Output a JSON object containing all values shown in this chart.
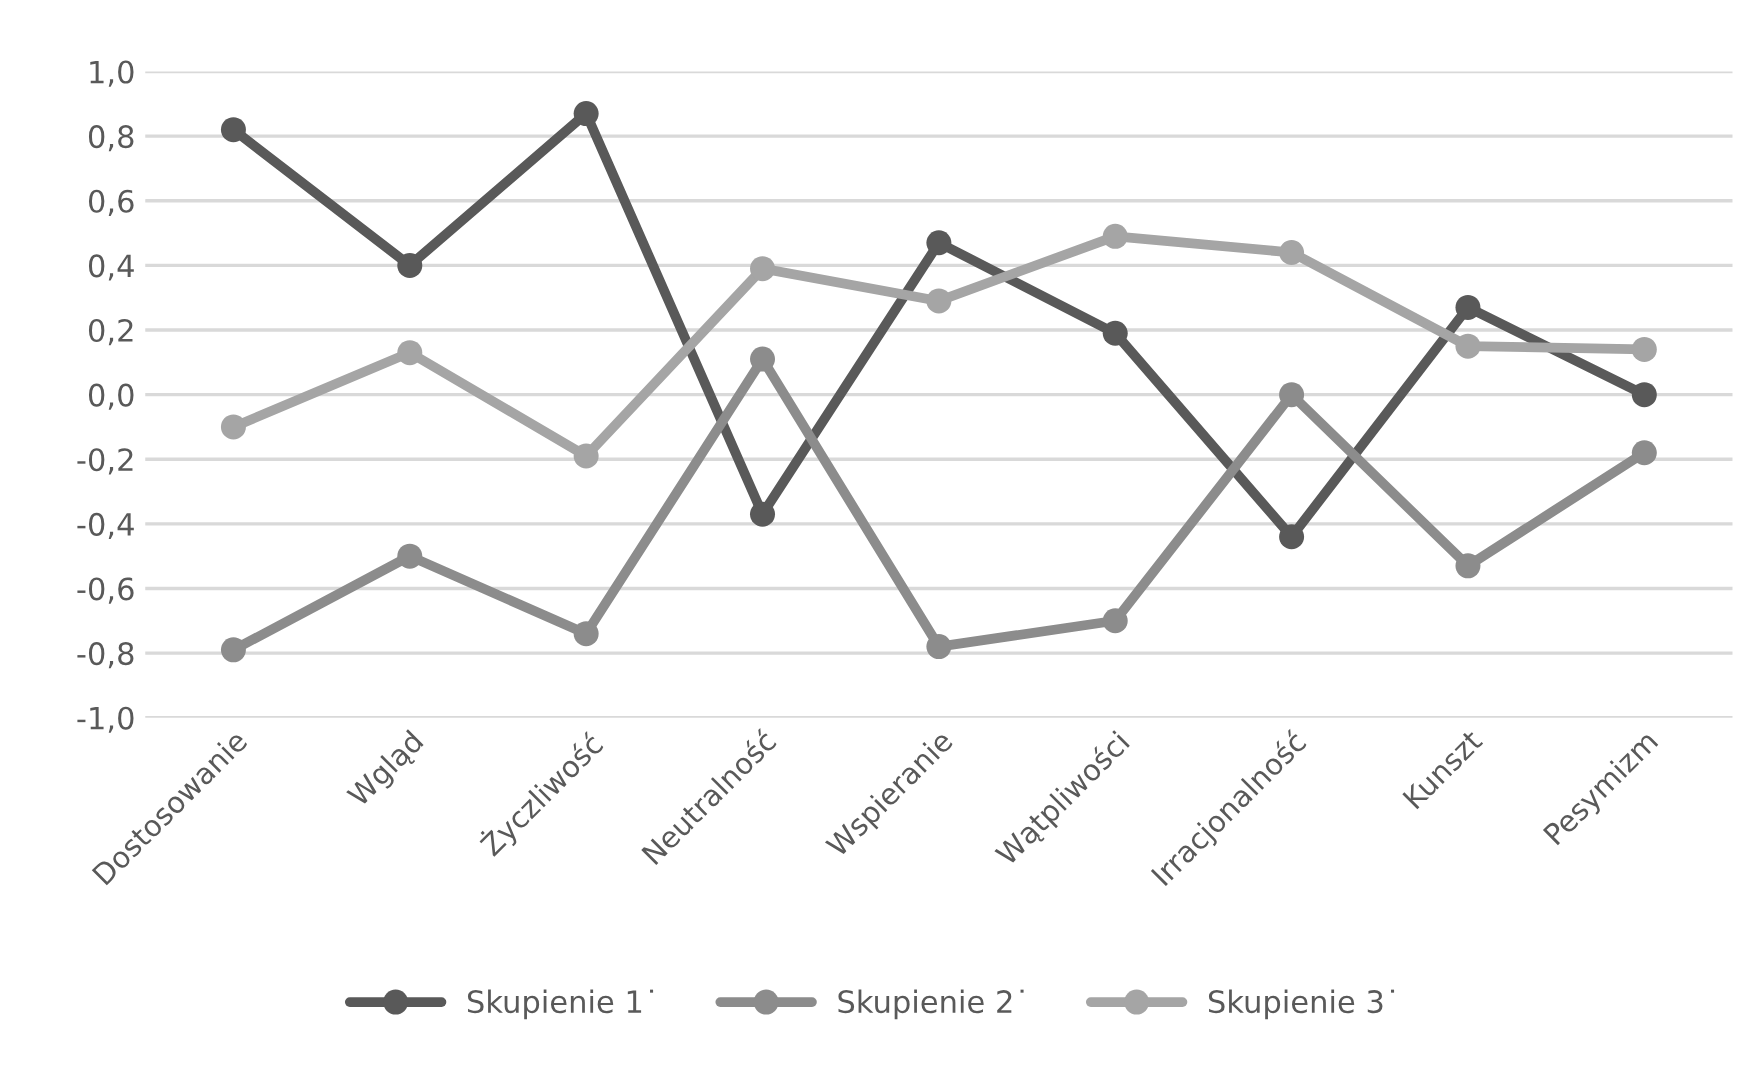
{
  "chart_data": {
    "type": "line",
    "categories": [
      "Dostosowanie",
      "Wgląd",
      "Życzliwość",
      "Neutralność",
      "Wspieranie",
      "Wątpliwości",
      "Irracjonalność",
      "Kunszt",
      "Pesymizm"
    ],
    "series": [
      {
        "name": "Skupienie 1˙",
        "color": "#595959",
        "values": [
          0.82,
          0.4,
          0.87,
          -0.37,
          0.47,
          0.19,
          -0.44,
          0.27,
          0.0
        ]
      },
      {
        "name": "Skupienie 2˙",
        "color": "#8c8c8c",
        "values": [
          -0.79,
          -0.5,
          -0.74,
          0.11,
          -0.78,
          -0.7,
          0.0,
          -0.53,
          -0.18
        ]
      },
      {
        "name": "Skupienie 3˙",
        "color": "#a5a5a5",
        "values": [
          -0.1,
          0.13,
          -0.19,
          0.39,
          0.29,
          0.49,
          0.44,
          0.15,
          0.14
        ]
      }
    ],
    "ylim": [
      -1.0,
      1.0
    ],
    "yticks": [
      {
        "value": -1.0,
        "label": "-1,0"
      },
      {
        "value": -0.8,
        "label": "-0,8"
      },
      {
        "value": -0.6,
        "label": "-0,6"
      },
      {
        "value": -0.4,
        "label": "-0,4"
      },
      {
        "value": -0.2,
        "label": "-0,2"
      },
      {
        "value": 0.0,
        "label": "0,0"
      },
      {
        "value": 0.2,
        "label": "0,2"
      },
      {
        "value": 0.4,
        "label": "0,4"
      },
      {
        "value": 0.6,
        "label": "0,6"
      },
      {
        "value": 0.8,
        "label": "0,8"
      },
      {
        "value": 1.0,
        "label": "1,0"
      }
    ],
    "grid": "y",
    "legend": "bottom",
    "marker": "circle",
    "line_style": "solid"
  }
}
